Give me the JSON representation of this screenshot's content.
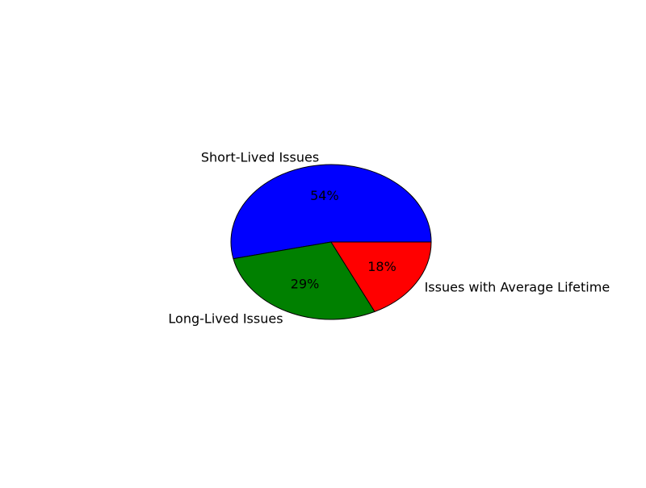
{
  "chart_data": {
    "type": "pie",
    "title": "",
    "slices": [
      {
        "label": "Short-Lived Issues",
        "value": 54,
        "pct_label": "54%",
        "color": "#0000ff"
      },
      {
        "label": "Long-Lived Issues",
        "value": 29,
        "pct_label": "29%",
        "color": "#008000"
      },
      {
        "label": "Issues with Average Lifetime",
        "value": 18,
        "pct_label": "18%",
        "color": "#ff0000"
      }
    ],
    "start_angle_deg": 0,
    "direction": "counterclockwise",
    "legend": "none"
  }
}
